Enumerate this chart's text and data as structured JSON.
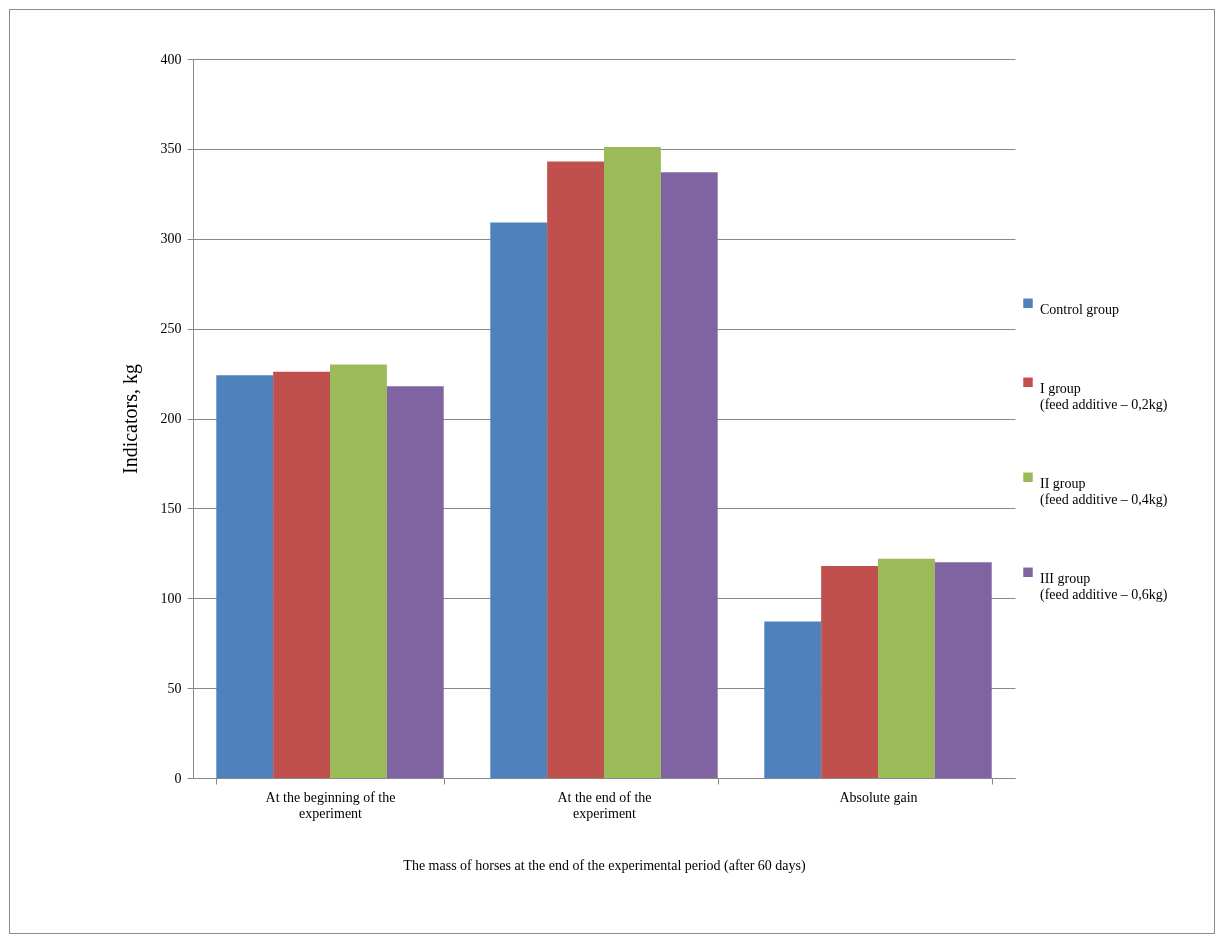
{
  "chart_data": {
    "type": "bar",
    "xlabel": "The mass of horses at the end of the experimental  period (after 60 days)",
    "ylabel": "Indicators,  kg",
    "categories": [
      "At the beginning of the experiment",
      "At the end of the experiment",
      "Absolute gain"
    ],
    "series": [
      {
        "name": "Control group",
        "color": "#4f81bd",
        "values": [
          224,
          309,
          87
        ]
      },
      {
        "name": "I group\n(feed additive – 0,2kg)",
        "color": "#c0504d",
        "values": [
          226,
          343,
          118
        ]
      },
      {
        "name": "II group\n(feed additive – 0,4kg)",
        "color": "#9bbb59",
        "values": [
          230,
          351,
          122
        ]
      },
      {
        "name": "III group\n(feed additive – 0,6kg)",
        "color": "#8064a2",
        "values": [
          218,
          337,
          120
        ]
      }
    ],
    "ylim": [
      0,
      400
    ],
    "yticks": [
      0,
      50,
      100,
      150,
      200,
      250,
      300,
      350,
      400
    ],
    "grid": "y",
    "legend": "right"
  }
}
